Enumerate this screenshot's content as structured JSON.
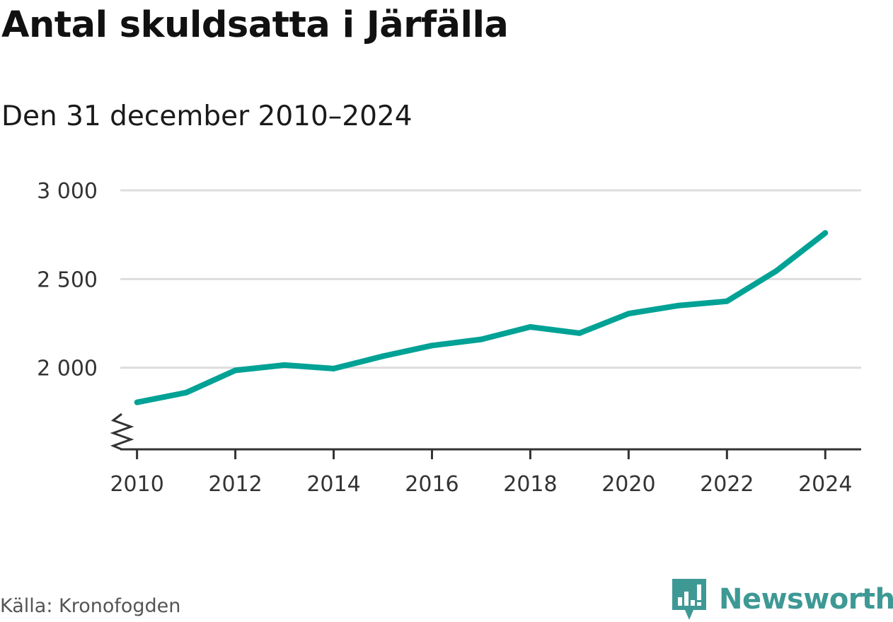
{
  "title": "Antal skuldsatta i Järfälla",
  "subtitle": "Den 31 december 2010–2024",
  "source": "Källa: Kronofogden",
  "brand": {
    "name": "Newsworthy",
    "icon": "newsworthy-logo-icon",
    "color": "#3e9995"
  },
  "colors": {
    "line": "#00a295",
    "grid": "#dddddd",
    "axis": "#333333"
  },
  "chart_data": {
    "type": "line",
    "title": "Antal skuldsatta i Järfälla",
    "subtitle": "Den 31 december 2010–2024",
    "xlabel": "",
    "ylabel": "",
    "x": [
      2010,
      2011,
      2012,
      2013,
      2014,
      2015,
      2016,
      2017,
      2018,
      2019,
      2020,
      2021,
      2022,
      2023,
      2024
    ],
    "series": [
      {
        "name": "Antal skuldsatta",
        "values": [
          1805,
          1860,
          1985,
          2015,
          1995,
          2065,
          2125,
          2160,
          2230,
          2195,
          2305,
          2350,
          2375,
          2545,
          2760
        ]
      }
    ],
    "ylim": [
      1540,
      3000
    ],
    "yticks": [
      2000,
      2500,
      3000
    ],
    "ytick_labels": [
      "2 000",
      "2 500",
      "3 000"
    ],
    "xticks": [
      2010,
      2012,
      2014,
      2016,
      2018,
      2020,
      2022,
      2024
    ],
    "xtick_labels": [
      "2010",
      "2012",
      "2014",
      "2016",
      "2018",
      "2020",
      "2022",
      "2024"
    ],
    "xlim": [
      2009.66,
      2024.73
    ],
    "grid": true,
    "axis_break": true
  }
}
